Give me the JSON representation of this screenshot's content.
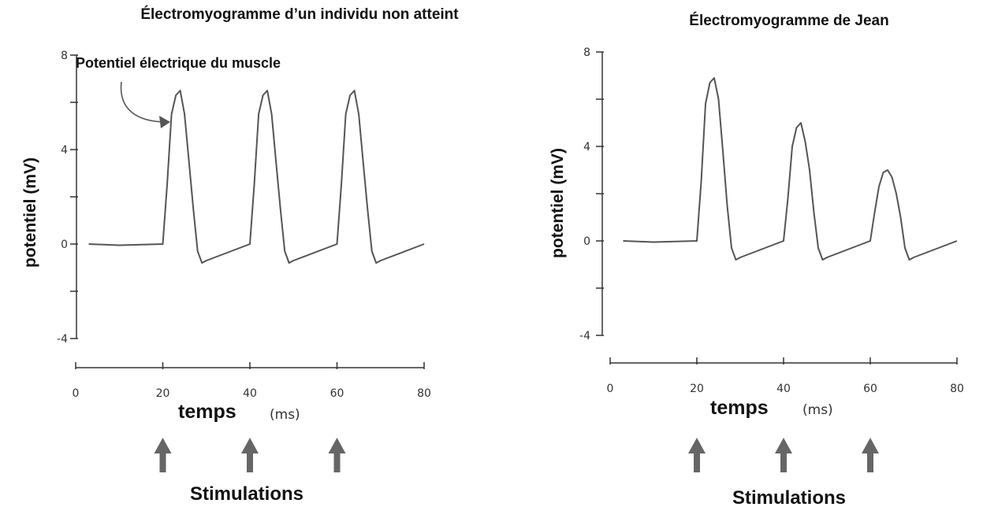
{
  "chart_data": [
    {
      "type": "line",
      "title": "Électromyogramme d’un individu non atteint",
      "annotation": "Potentiel électrique du muscle",
      "ylabel": "potentiel (mV)",
      "xlabel": "temps",
      "xlabel_unit": "(ms)",
      "ylim": [
        -4,
        8
      ],
      "xlim": [
        0,
        80
      ],
      "yticks": [
        "8",
        "4",
        "0",
        "-4"
      ],
      "xticks": [
        "0",
        "20",
        "40",
        "60",
        "80"
      ],
      "stimulations_label": "Stimulations",
      "stimulations_at": [
        20,
        40,
        60
      ],
      "series": [
        {
          "x": [
            3,
            10,
            20,
            21,
            22,
            23,
            24,
            25,
            26,
            27,
            28,
            29,
            30,
            40,
            41,
            42,
            43,
            44,
            45,
            46,
            47,
            48,
            49,
            50,
            60,
            61,
            62,
            63,
            64,
            65,
            66,
            67,
            68,
            69,
            70,
            80
          ],
          "y": [
            0,
            -0.05,
            0,
            2.5,
            5.5,
            6.3,
            6.5,
            5.5,
            3.5,
            1.5,
            -0.3,
            -0.8,
            -0.7,
            0,
            2.5,
            5.5,
            6.3,
            6.5,
            5.5,
            3.5,
            1.5,
            -0.3,
            -0.8,
            -0.7,
            0,
            2.5,
            5.5,
            6.3,
            6.5,
            5.5,
            3.5,
            1.5,
            -0.3,
            -0.8,
            -0.7,
            0
          ]
        }
      ]
    },
    {
      "type": "line",
      "title": "Électromyogramme de Jean",
      "ylabel": "potentiel (mV)",
      "xlabel": "temps",
      "xlabel_unit": "(ms)",
      "ylim": [
        -4,
        8
      ],
      "xlim": [
        0,
        80
      ],
      "yticks": [
        "8",
        "4",
        "0",
        "-4"
      ],
      "xticks": [
        "0",
        "20",
        "40",
        "60",
        "80"
      ],
      "stimulations_label": "Stimulations",
      "stimulations_at": [
        20,
        40,
        60
      ],
      "series": [
        {
          "x": [
            3,
            10,
            20,
            21,
            22,
            23,
            24,
            25,
            26,
            27,
            28,
            29,
            30,
            40,
            41,
            42,
            43,
            44,
            45,
            46,
            47,
            48,
            49,
            50,
            60,
            61,
            62,
            63,
            64,
            65,
            66,
            67,
            68,
            69,
            70,
            80
          ],
          "y": [
            0,
            -0.05,
            0,
            2.5,
            5.8,
            6.7,
            6.9,
            6,
            3.8,
            1.5,
            -0.3,
            -0.8,
            -0.7,
            0,
            1.8,
            4,
            4.8,
            5,
            4.2,
            3,
            1.2,
            -0.3,
            -0.8,
            -0.7,
            0,
            1.2,
            2.3,
            2.9,
            3,
            2.7,
            2,
            1,
            -0.3,
            -0.8,
            -0.7,
            0
          ]
        }
      ]
    }
  ]
}
